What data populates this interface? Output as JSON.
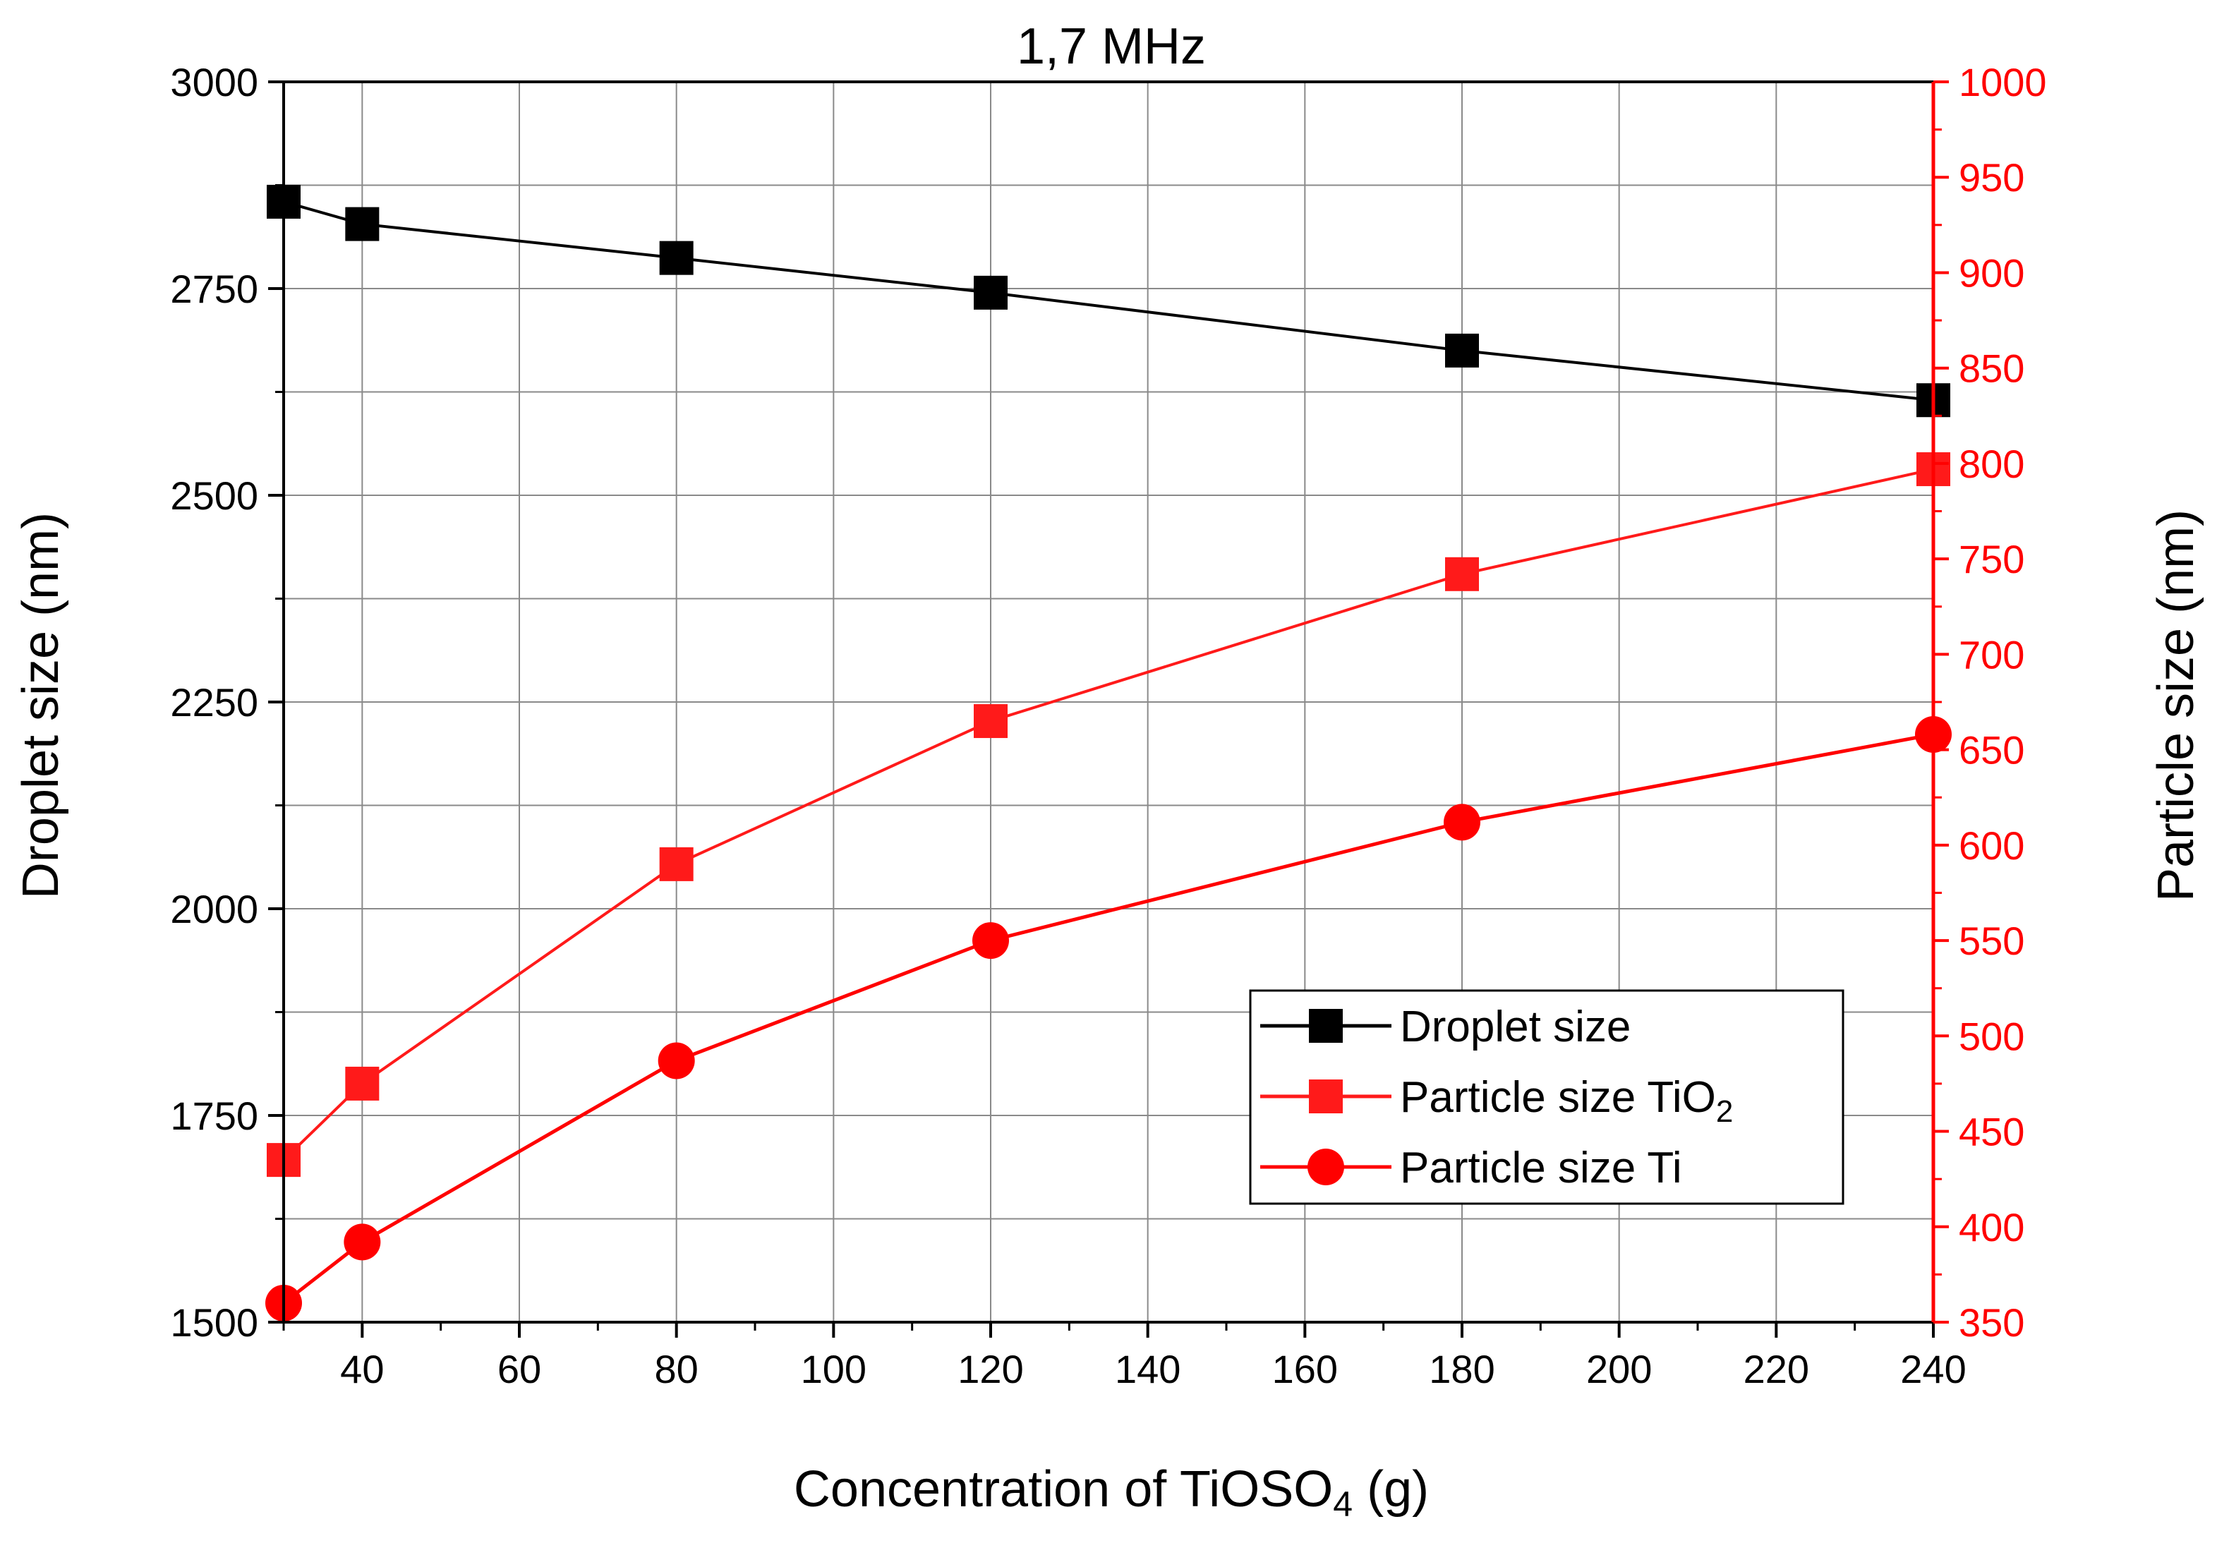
{
  "chart_data": {
    "type": "line",
    "title": "1,7 MHz",
    "xlabel": {
      "main": "Concentration of TiOSO",
      "sub": "4",
      "unit": " (g)"
    },
    "ylabel": "Droplet size (nm)",
    "y2label": "Particle size (nm)",
    "xlim": [
      30,
      240
    ],
    "ylim": [
      1500,
      3000
    ],
    "y2lim": [
      350,
      1000
    ],
    "grid": true,
    "xticks": [
      40,
      60,
      80,
      100,
      120,
      140,
      160,
      180,
      200,
      220,
      240
    ],
    "yticks": [
      1500,
      1750,
      2000,
      2250,
      2500,
      2750,
      3000
    ],
    "y2ticks": [
      350,
      400,
      450,
      500,
      550,
      600,
      650,
      700,
      750,
      800,
      850,
      900,
      950,
      1000
    ],
    "legend_position": "lower-right",
    "series": [
      {
        "name": "Droplet size",
        "name_sub": "",
        "axis": "left",
        "marker": "square",
        "color": "#000000",
        "x": [
          30,
          40,
          80,
          120,
          180,
          240
        ],
        "values": [
          2855,
          2828,
          2787,
          2745,
          2675,
          2615
        ]
      },
      {
        "name": "Particle size TiO",
        "name_sub": "2",
        "axis": "right",
        "marker": "square",
        "color": "#ff1a1a",
        "x": [
          30,
          40,
          80,
          120,
          180,
          240
        ],
        "values": [
          435,
          475,
          590,
          665,
          742,
          797
        ]
      },
      {
        "name": "Particle size Ti",
        "name_sub": "",
        "axis": "right",
        "marker": "circle",
        "color": "#ff0000",
        "x": [
          30,
          40,
          80,
          120,
          180,
          240
        ],
        "values": [
          360,
          392,
          487,
          550,
          612,
          658
        ]
      }
    ]
  }
}
